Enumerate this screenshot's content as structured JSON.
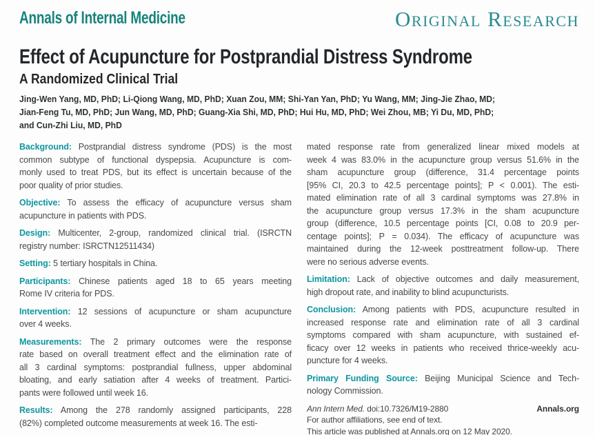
{
  "masthead": {
    "journal": "Annals of Internal Medicine",
    "category": "Original Research"
  },
  "article": {
    "title": "Effect of Acupuncture for Postprandial Distress Syndrome",
    "subtitle": "A Randomized Clinical Trial",
    "author_lines": [
      "Jing-Wen Yang, MD, PhD; Li-Qiong Wang, MD, PhD; Xuan Zou, MM; Shi-Yan Yan, PhD; Yu Wang, MM; Jing-Jie Zhao, MD;",
      "Jian-Feng Tu, MD, PhD; Jun Wang, MD, PhD; Guang-Xia Shi, MD, PhD; Hui Hu, MD, PhD; Wei Zhou, MB; Yi Du, MD, PhD;",
      "and Cun-Zhi Liu, MD, PhD"
    ]
  },
  "abstract": {
    "left_column": [
      {
        "label": "Background:",
        "lines": [
          "Postprandial distress syndrome (PDS) is the most",
          "common subtype of functional dyspepsia. Acupuncture is com-",
          "monly used to treat PDS, but its effect is uncertain because of the",
          "poor quality of prior studies."
        ]
      },
      {
        "label": "Objective:",
        "lines": [
          "To assess the efficacy of acupuncture versus sham",
          "acupuncture in patients with PDS."
        ]
      },
      {
        "label": "Design:",
        "lines": [
          "Multicenter, 2-group, randomized clinical trial. (ISRCTN",
          "registry number: ISRCTN12511434)"
        ]
      },
      {
        "label": "Setting:",
        "lines": [
          "5 tertiary hospitals in China."
        ]
      },
      {
        "label": "Participants:",
        "lines": [
          "Chinese patients aged 18 to 65 years meeting",
          "Rome IV criteria for PDS."
        ]
      },
      {
        "label": "Intervention:",
        "lines": [
          "12 sessions of acupuncture or sham acupuncture",
          "over 4 weeks."
        ]
      },
      {
        "label": "Measurements:",
        "lines": [
          "The 2 primary outcomes were the response",
          "rate based on overall treatment effect and the elimination rate of",
          "all 3 cardinal symptoms: postprandial fullness, upper abdominal",
          "bloating, and early satiation after 4 weeks of treatment. Partici-",
          "pants were followed until week 16."
        ]
      },
      {
        "label": "Results:",
        "lines": [
          "Among the 278 randomly assigned participants, 228",
          "(82%) completed outcome measurements at week 16. The esti-"
        ]
      }
    ],
    "right_column": [
      {
        "label": "",
        "lines": [
          "mated response rate from generalized linear mixed models at",
          "week 4 was 83.0% in the acupuncture group versus 51.6% in the",
          "sham acupuncture group (difference, 31.4 percentage points",
          "[95% CI, 20.3 to 42.5 percentage points]; P < 0.001). The esti-",
          "mated elimination rate of all 3 cardinal symptoms was 27.8% in",
          "the acupuncture group versus 17.3% in the sham acupuncture",
          "group (difference, 10.5 percentage points [CI, 0.08 to 20.9 per-",
          "centage points]; P = 0.034). The efficacy of acupuncture was",
          "maintained during the 12-week posttreatment follow-up. There",
          "were no serious adverse events."
        ]
      },
      {
        "label": "Limitation:",
        "lines": [
          "Lack of objective outcomes and daily measurement,",
          "high dropout rate, and inability to blind acupuncturists."
        ]
      },
      {
        "label": "Conclusion:",
        "lines": [
          "Among patients with PDS, acupuncture resulted in",
          "increased response rate and elimination rate of all 3 cardinal",
          "symptoms compared with sham acupuncture, with sustained ef-",
          "ficacy over 12 weeks in patients who received thrice-weekly acu-",
          "puncture for 4 weeks."
        ]
      },
      {
        "label": "Primary Funding Source:",
        "lines": [
          "Beijing Municipal Science and Tech-",
          "nology Commission."
        ]
      }
    ]
  },
  "footer": {
    "journal_abbrev": "Ann Intern Med.",
    "doi": "doi:10.7326/M19-2880",
    "site": "Annals.org",
    "affiliations_note": "For author affiliations, see end of text.",
    "published_note": "This article was published at Annals.org on 12 May 2020."
  },
  "colors": {
    "teal_logo": "#17837d",
    "teal_banner": "#2b8b93",
    "teal_label": "#0f96a0",
    "body_text": "#45494b",
    "title_text": "#24272a"
  }
}
